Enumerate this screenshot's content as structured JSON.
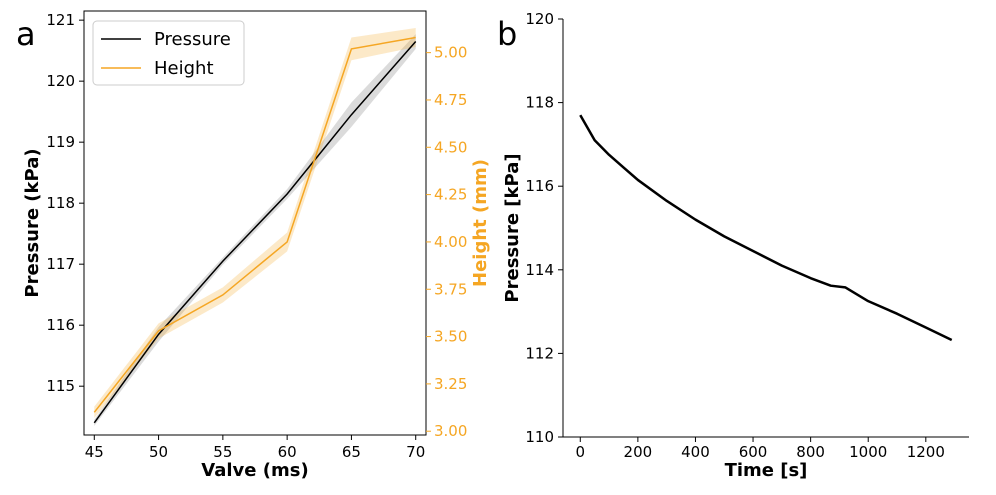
{
  "chart_data": [
    {
      "panel_label": "a",
      "type": "line",
      "xlabel": "Valve (ms)",
      "ylabel": "Pressure (kPa)",
      "y2label": "Height (mm)",
      "x": [
        45,
        50,
        55,
        60,
        65,
        70
      ],
      "xticks": [
        45,
        50,
        55,
        60,
        65,
        70
      ],
      "xlim": [
        44.2,
        70.8
      ],
      "ylim": [
        114.2,
        121.15
      ],
      "yticks": [
        115,
        116,
        117,
        118,
        119,
        120,
        121
      ],
      "y2lim": [
        2.98,
        5.22
      ],
      "y2ticks": [
        "3.00",
        "3.25",
        "3.50",
        "3.75",
        "4.00",
        "4.25",
        "4.50",
        "4.75",
        "5.00"
      ],
      "legend_position": "top-left",
      "series": [
        {
          "name": "Pressure",
          "axis": "left",
          "color": "#000000",
          "values": [
            114.4,
            115.85,
            117.05,
            118.15,
            119.45,
            120.65
          ],
          "band_halfwidth": [
            0.05,
            0.12,
            0.06,
            0.08,
            0.2,
            0.12
          ]
        },
        {
          "name": "Height",
          "axis": "right",
          "color": "#f5a623",
          "values": [
            3.1,
            3.53,
            3.72,
            4.0,
            5.02,
            5.08
          ],
          "band_halfwidth": [
            0.03,
            0.04,
            0.04,
            0.05,
            0.06,
            0.05
          ]
        }
      ]
    },
    {
      "panel_label": "b",
      "type": "line",
      "xlabel": "Time [s]",
      "ylabel": "Pressure [kPa]",
      "xlim": [
        -60,
        1350
      ],
      "ylim": [
        110,
        120
      ],
      "xticks": [
        0,
        200,
        400,
        600,
        800,
        1000,
        1200
      ],
      "yticks": [
        110,
        112,
        114,
        116,
        118,
        120
      ],
      "series": [
        {
          "color": "#000000",
          "x": [
            0,
            50,
            100,
            150,
            200,
            300,
            400,
            500,
            600,
            700,
            800,
            870,
            920,
            1000,
            1100,
            1200,
            1290
          ],
          "values": [
            117.7,
            117.1,
            116.75,
            116.45,
            116.15,
            115.65,
            115.2,
            114.8,
            114.45,
            114.1,
            113.8,
            113.62,
            113.58,
            113.25,
            112.95,
            112.62,
            112.32
          ]
        }
      ]
    }
  ]
}
